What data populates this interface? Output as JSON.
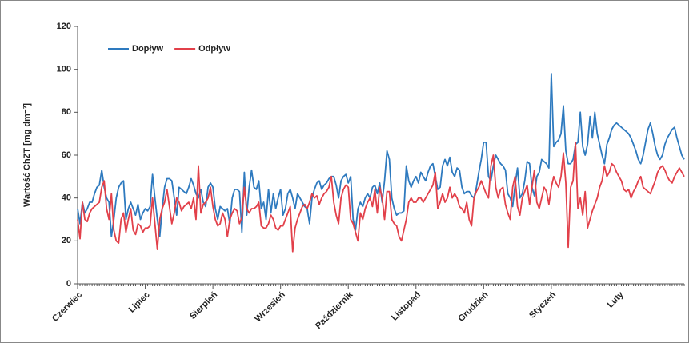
{
  "chart_data": {
    "type": "line",
    "ylabel": "Wartość ChZT [mg dm⁻³]",
    "legend": "upper left",
    "grid": false,
    "ylim": [
      0,
      120
    ],
    "yticks": [
      0,
      20,
      40,
      60,
      80,
      100,
      120
    ],
    "categories": [
      "Czerwiec",
      null,
      null,
      null,
      null,
      null,
      null,
      null,
      null,
      null,
      null,
      null,
      null,
      null,
      null,
      null,
      null,
      null,
      null,
      null,
      null,
      null,
      null,
      null,
      null,
      null,
      null,
      null,
      "Lipiec",
      null,
      null,
      null,
      null,
      null,
      null,
      null,
      null,
      null,
      null,
      null,
      null,
      null,
      null,
      null,
      null,
      null,
      null,
      null,
      null,
      null,
      null,
      null,
      null,
      null,
      null,
      null,
      "Sierpień",
      null,
      null,
      null,
      null,
      null,
      null,
      null,
      null,
      null,
      null,
      null,
      null,
      null,
      null,
      null,
      null,
      null,
      null,
      null,
      null,
      null,
      null,
      null,
      null,
      null,
      null,
      null,
      "Wrzesień",
      null,
      null,
      null,
      null,
      null,
      null,
      null,
      null,
      null,
      null,
      null,
      null,
      null,
      null,
      null,
      null,
      null,
      null,
      null,
      null,
      null,
      null,
      null,
      null,
      null,
      null,
      null,
      "Październik",
      null,
      null,
      null,
      null,
      null,
      null,
      null,
      null,
      null,
      null,
      null,
      null,
      null,
      null,
      null,
      null,
      null,
      null,
      null,
      null,
      null,
      null,
      null,
      null,
      null,
      null,
      null,
      "Listopad",
      null,
      null,
      null,
      null,
      null,
      null,
      null,
      null,
      null,
      null,
      null,
      null,
      null,
      null,
      null,
      null,
      null,
      null,
      null,
      null,
      null,
      null,
      null,
      null,
      null,
      null,
      null,
      "Grudzień",
      null,
      null,
      null,
      null,
      null,
      null,
      null,
      null,
      null,
      null,
      null,
      null,
      null,
      null,
      null,
      null,
      null,
      null,
      null,
      null,
      null,
      null,
      null,
      null,
      null,
      null,
      null,
      "Styczeń",
      null,
      null,
      null,
      null,
      null,
      null,
      null,
      null,
      null,
      null,
      null,
      null,
      null,
      null,
      null,
      null,
      null,
      null,
      null,
      null,
      null,
      null,
      null,
      null,
      null,
      null,
      null,
      "Luty",
      null,
      null,
      null,
      null,
      null,
      null,
      null,
      null,
      null,
      null,
      null,
      null,
      null,
      null,
      null,
      null,
      null,
      null,
      null,
      null,
      null,
      null,
      null,
      null,
      null,
      null,
      null
    ],
    "series": [
      {
        "name": "Dopływ",
        "color": "#2e7abf",
        "values": [
          35,
          28,
          38,
          33,
          35,
          38,
          38,
          42,
          45,
          46,
          53,
          45,
          40,
          38,
          22,
          30,
          40,
          45,
          47,
          48,
          30,
          35,
          38,
          35,
          32,
          37,
          30,
          33,
          35,
          34,
          36,
          51,
          40,
          30,
          22,
          35,
          45,
          49,
          49,
          48,
          40,
          32,
          45,
          44,
          43,
          42,
          45,
          49,
          46,
          42,
          40,
          44,
          38,
          36,
          45,
          47,
          45,
          35,
          30,
          36,
          35,
          34,
          35,
          28,
          40,
          44,
          44,
          43,
          24,
          52,
          32,
          45,
          53,
          45,
          44,
          48,
          35,
          38,
          30,
          44,
          33,
          42,
          35,
          40,
          44,
          32,
          35,
          42,
          44,
          40,
          35,
          42,
          40,
          38,
          36,
          35,
          28,
          40,
          44,
          47,
          48,
          44,
          46,
          47,
          49,
          50,
          50,
          46,
          40,
          48,
          50,
          51,
          47,
          50,
          30,
          25,
          35,
          38,
          36,
          40,
          42,
          40,
          45,
          46,
          42,
          47,
          38,
          48,
          62,
          58,
          40,
          35,
          32,
          33,
          33,
          34,
          55,
          48,
          45,
          48,
          50,
          47,
          52,
          50,
          48,
          52,
          55,
          56,
          50,
          44,
          45,
          55,
          58,
          55,
          59,
          52,
          50,
          54,
          53,
          45,
          42,
          43,
          43,
          41,
          40,
          45,
          52,
          58,
          66,
          66,
          50,
          48,
          55,
          60,
          58,
          56,
          55,
          53,
          42,
          40,
          36,
          46,
          54,
          40,
          42,
          48,
          57,
          56,
          45,
          41,
          50,
          52,
          58,
          57,
          56,
          54,
          98,
          64,
          66,
          67,
          70,
          83,
          62,
          56,
          56,
          58,
          65,
          66,
          80,
          64,
          60,
          65,
          78,
          68,
          80,
          70,
          65,
          60,
          56,
          65,
          68,
          72,
          74,
          75,
          74,
          73,
          72,
          71,
          70,
          68,
          65,
          62,
          58,
          56,
          60,
          66,
          72,
          75,
          70,
          64,
          60,
          58,
          60,
          65,
          68,
          70,
          72,
          73,
          68,
          64,
          60,
          58
        ]
      },
      {
        "name": "Odpływ",
        "color": "#e2404a",
        "values": [
          30,
          21,
          38,
          30,
          29,
          33,
          35,
          36,
          37,
          38,
          45,
          48,
          35,
          30,
          42,
          25,
          20,
          19,
          30,
          33,
          24,
          30,
          35,
          25,
          23,
          28,
          27,
          24,
          26,
          26,
          27,
          40,
          28,
          16,
          30,
          35,
          38,
          44,
          36,
          28,
          33,
          40,
          38,
          34,
          36,
          37,
          38,
          35,
          40,
          30,
          55,
          33,
          37,
          38,
          40,
          45,
          36,
          30,
          27,
          28,
          33,
          30,
          22,
          30,
          33,
          35,
          34,
          28,
          31,
          45,
          35,
          33,
          35,
          35,
          36,
          38,
          27,
          26,
          26,
          28,
          32,
          30,
          26,
          25,
          27,
          27,
          30,
          33,
          36,
          15,
          26,
          30,
          33,
          36,
          37,
          35,
          38,
          42,
          40,
          41,
          37,
          40,
          42,
          43,
          45,
          50,
          38,
          32,
          28,
          40,
          44,
          46,
          45,
          30,
          28,
          24,
          20,
          33,
          30,
          35,
          38,
          40,
          36,
          44,
          33,
          45,
          40,
          30,
          43,
          43,
          30,
          28,
          27,
          22,
          20,
          25,
          30,
          38,
          40,
          38,
          38,
          40,
          40,
          38,
          40,
          42,
          44,
          46,
          52,
          35,
          38,
          42,
          38,
          40,
          45,
          40,
          42,
          40,
          36,
          35,
          33,
          38,
          30,
          27,
          40,
          43,
          45,
          48,
          45,
          42,
          40,
          55,
          60,
          45,
          40,
          44,
          45,
          37,
          33,
          30,
          45,
          50,
          36,
          32,
          40,
          43,
          46,
          37,
          45,
          53,
          38,
          35,
          40,
          45,
          43,
          37,
          45,
          50,
          47,
          45,
          50,
          61,
          47,
          17,
          45,
          48,
          66,
          35,
          40,
          32,
          43,
          26,
          30,
          34,
          37,
          40,
          45,
          48,
          55,
          50,
          52,
          56,
          55,
          52,
          50,
          48,
          44,
          43,
          44,
          40,
          43,
          45,
          48,
          50,
          45,
          44,
          43,
          42,
          45,
          48,
          52,
          54,
          55,
          53,
          50,
          48,
          47,
          50,
          52,
          54,
          52,
          50
        ]
      }
    ]
  }
}
